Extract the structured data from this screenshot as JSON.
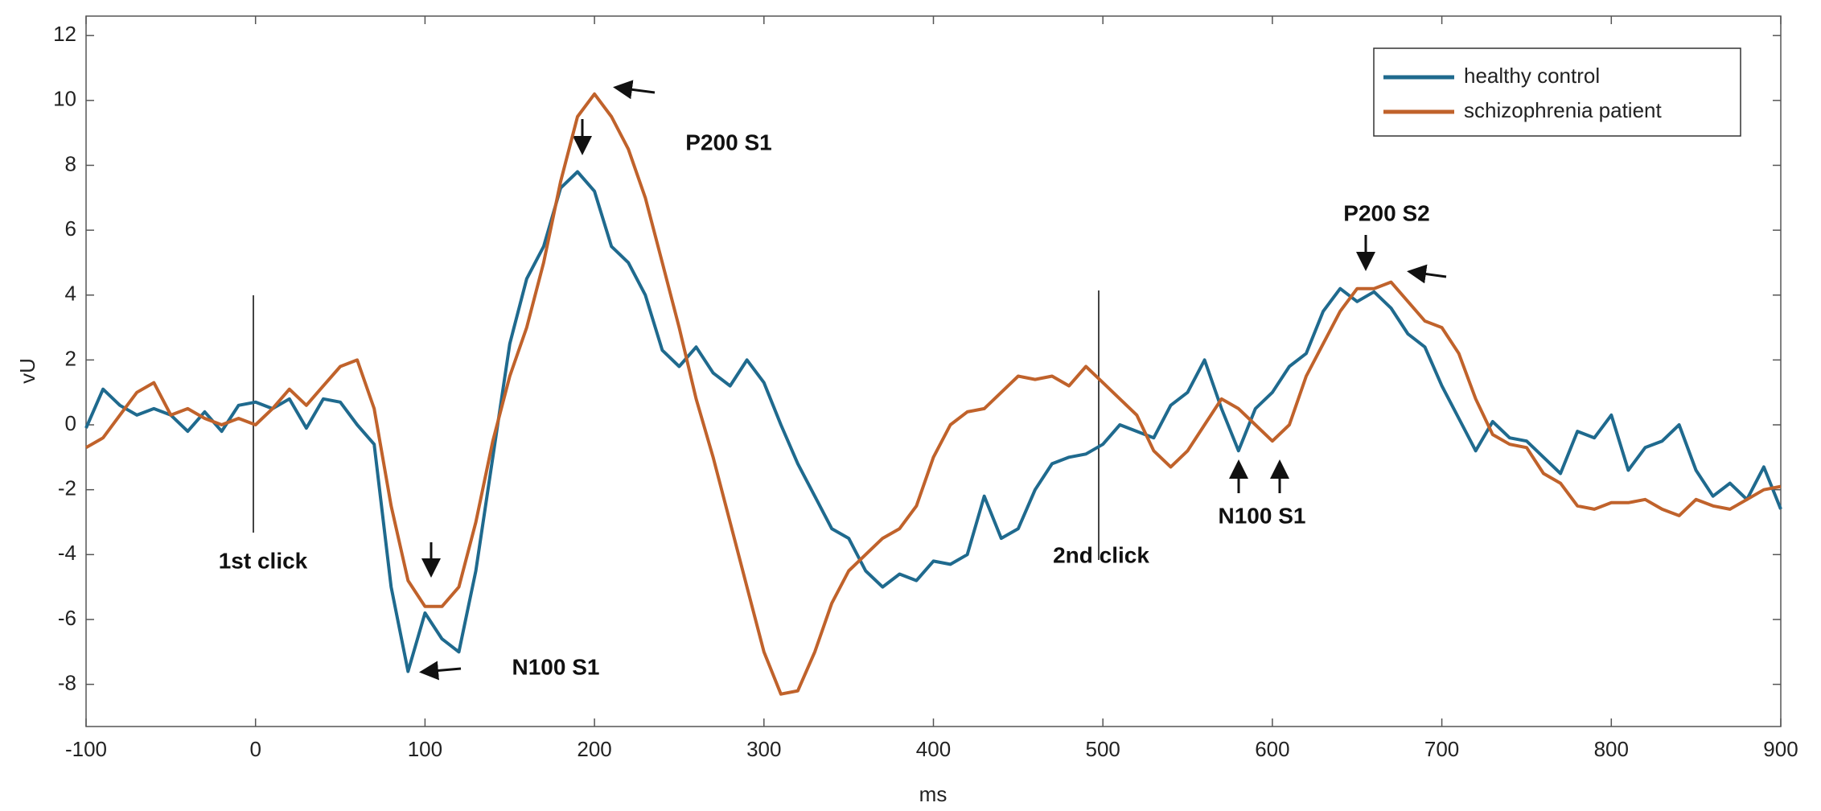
{
  "chart_data": {
    "type": "line",
    "xlabel": "ms",
    "ylabel": "vU",
    "x": [
      -100,
      -90,
      -80,
      -70,
      -60,
      -50,
      -40,
      -30,
      -20,
      -10,
      0,
      10,
      20,
      30,
      40,
      50,
      60,
      70,
      80,
      90,
      100,
      110,
      120,
      130,
      140,
      150,
      160,
      170,
      180,
      190,
      200,
      210,
      220,
      230,
      240,
      250,
      260,
      270,
      280,
      290,
      300,
      310,
      320,
      330,
      340,
      350,
      360,
      370,
      380,
      390,
      400,
      410,
      420,
      430,
      440,
      450,
      460,
      470,
      480,
      490,
      500,
      510,
      520,
      530,
      540,
      550,
      560,
      570,
      580,
      590,
      600,
      610,
      620,
      630,
      640,
      650,
      660,
      670,
      680,
      690,
      700,
      710,
      720,
      730,
      740,
      750,
      760,
      770,
      780,
      790,
      800,
      810,
      820,
      830,
      840,
      850,
      860,
      870,
      880,
      890,
      900
    ],
    "series": [
      {
        "name": "healthy control",
        "color": "#1f6a8e",
        "values": [
          -0.1,
          1.1,
          0.6,
          0.3,
          0.5,
          0.3,
          -0.2,
          0.4,
          -0.2,
          0.6,
          0.7,
          0.5,
          0.8,
          -0.1,
          0.8,
          0.7,
          0,
          -0.6,
          -5,
          -7.6,
          -5.8,
          -6.6,
          -7,
          -4.5,
          -1,
          2.5,
          4.5,
          5.5,
          7.3,
          7.8,
          7.2,
          5.5,
          5,
          4,
          2.3,
          1.8,
          2.4,
          1.6,
          1.2,
          2,
          1.3,
          0,
          -1.2,
          -2.2,
          -3.2,
          -3.5,
          -4.5,
          -5,
          -4.6,
          -4.8,
          -4.2,
          -4.3,
          -4,
          -2.2,
          -3.5,
          -3.2,
          -2,
          -1.2,
          -1,
          -0.9,
          -0.6,
          0,
          -0.2,
          -0.4,
          0.6,
          1,
          2,
          0.5,
          -0.8,
          0.5,
          1,
          1.8,
          2.2,
          3.5,
          4.2,
          3.8,
          4.1,
          3.6,
          2.8,
          2.4,
          1.2,
          0.2,
          -0.8,
          0.1,
          -0.4,
          -0.5,
          -1,
          -1.5,
          -0.2,
          -0.4,
          0.3,
          -1.4,
          -0.7,
          -0.5,
          0,
          -1.4,
          -2.2,
          -1.8,
          -2.3,
          -1.3,
          -2.6
        ]
      },
      {
        "name": "schizophrenia patient",
        "color": "#c0622b",
        "values": [
          -0.7,
          -0.4,
          0.3,
          1,
          1.3,
          0.3,
          0.5,
          0.2,
          0,
          0.2,
          0,
          0.5,
          1.1,
          0.6,
          1.2,
          1.8,
          2,
          0.5,
          -2.5,
          -4.8,
          -5.6,
          -5.6,
          -5,
          -3,
          -0.5,
          1.5,
          3,
          5,
          7.5,
          9.5,
          10.2,
          9.5,
          8.5,
          7,
          5,
          3,
          0.8,
          -1,
          -3,
          -5,
          -7,
          -8.3,
          -8.2,
          -7,
          -5.5,
          -4.5,
          -4,
          -3.5,
          -3.2,
          -2.5,
          -1,
          0,
          0.4,
          0.5,
          1,
          1.5,
          1.4,
          1.5,
          1.2,
          1.8,
          1.3,
          0.8,
          0.3,
          -0.8,
          -1.3,
          -0.8,
          0,
          0.8,
          0.5,
          0,
          -0.5,
          0,
          1.5,
          2.5,
          3.5,
          4.2,
          4.2,
          4.4,
          3.8,
          3.2,
          3,
          2.2,
          0.8,
          -0.3,
          -0.6,
          -0.7,
          -1.5,
          -1.8,
          -2.5,
          -2.6,
          -2.4,
          -2.4,
          -2.3,
          -2.6,
          -2.8,
          -2.3,
          -2.5,
          -2.6,
          -2.3,
          -2,
          -1.9
        ]
      }
    ],
    "xlim": [
      -100,
      900
    ],
    "ylim": [
      -9.3,
      12.6
    ],
    "xticks": [
      -100,
      0,
      100,
      200,
      300,
      400,
      500,
      600,
      700,
      800,
      900
    ],
    "yticks": [
      -8,
      -6,
      -4,
      -2,
      0,
      2,
      4,
      6,
      8,
      10,
      12
    ],
    "grid": false,
    "legend": "upper right",
    "annotations": [
      "1st click",
      "N100 S1",
      "P200 S1",
      "2nd click",
      "N100 S1",
      "P200 S2"
    ]
  }
}
